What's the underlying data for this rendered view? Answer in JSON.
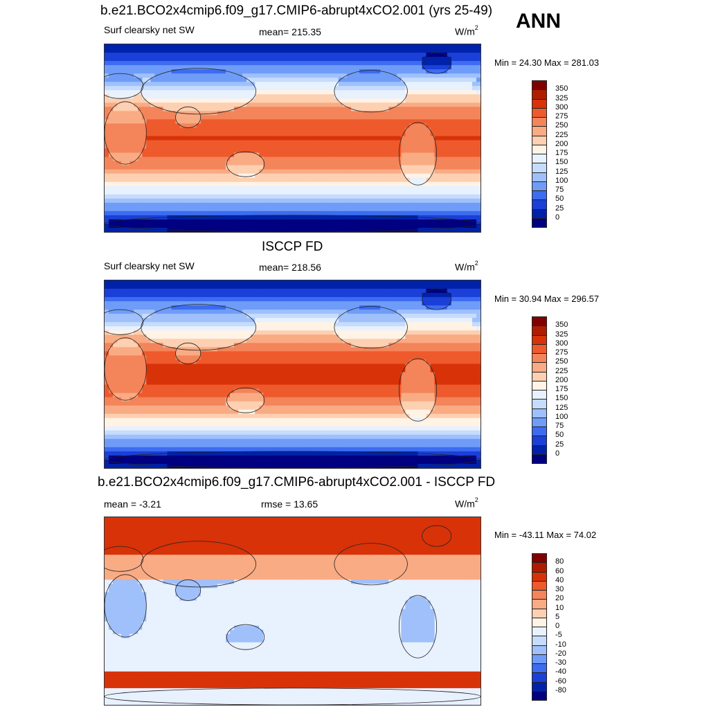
{
  "header": {
    "season": "ANN"
  },
  "colors": {
    "abs_palette": [
      "#000080",
      "#0022aa",
      "#1a40d8",
      "#3d6cf0",
      "#6f9cf8",
      "#9fc0fb",
      "#c6dcfc",
      "#e8f1fe",
      "#fff3e6",
      "#fdd0b2",
      "#f9ab84",
      "#f4845a",
      "#ee5a2c",
      "#d83208",
      "#b01c00",
      "#800000"
    ],
    "diff_palette": [
      "#000080",
      "#0022aa",
      "#1a40d8",
      "#3d6cf0",
      "#6f9cf8",
      "#9fc0fb",
      "#c6dcfc",
      "#e8f1fe",
      "#fff3e6",
      "#fdd0b2",
      "#f9ab84",
      "#f4845a",
      "#ee5a2c",
      "#d83208",
      "#b01c00",
      "#800000"
    ]
  },
  "panels": [
    {
      "title": "b.e21.BCO2x4cmip6.f09_g17.CMIP6-abrupt4xCO2.001 (yrs 25-49)",
      "left_label": "Surf clearsky net SW",
      "center_label": "mean= 215.35",
      "units_base": "W/m",
      "units_exp": "2",
      "minmax": "Min =  24.30 Max = 281.03",
      "colorbar_labels": [
        "350",
        "325",
        "300",
        "275",
        "250",
        "225",
        "200",
        "175",
        "150",
        "125",
        "100",
        "75",
        "50",
        "25",
        "0"
      ],
      "map": {
        "type": "abs",
        "field": "model"
      }
    },
    {
      "title": "ISCCP FD",
      "left_label": "Surf clearsky net SW",
      "center_label": "mean= 218.56",
      "units_base": "W/m",
      "units_exp": "2",
      "minmax": "Min =  30.94 Max = 296.57",
      "colorbar_labels": [
        "350",
        "325",
        "300",
        "275",
        "250",
        "225",
        "200",
        "175",
        "150",
        "125",
        "100",
        "75",
        "50",
        "25",
        "0"
      ],
      "map": {
        "type": "abs",
        "field": "obs"
      }
    },
    {
      "title": "b.e21.BCO2x4cmip6.f09_g17.CMIP6-abrupt4xCO2.001 - ISCCP FD",
      "left_label": "mean =  -3.21",
      "center_label": "rmse =  13.65",
      "units_base": "W/m",
      "units_exp": "2",
      "minmax": "Min = -43.11 Max =  74.02",
      "colorbar_labels": [
        "80",
        "60",
        "40",
        "30",
        "20",
        "10",
        "5",
        "0",
        "-5",
        "-10",
        "-20",
        "-30",
        "-40",
        "-60",
        "-80"
      ],
      "map": {
        "type": "diff",
        "field": "difference"
      }
    }
  ]
}
